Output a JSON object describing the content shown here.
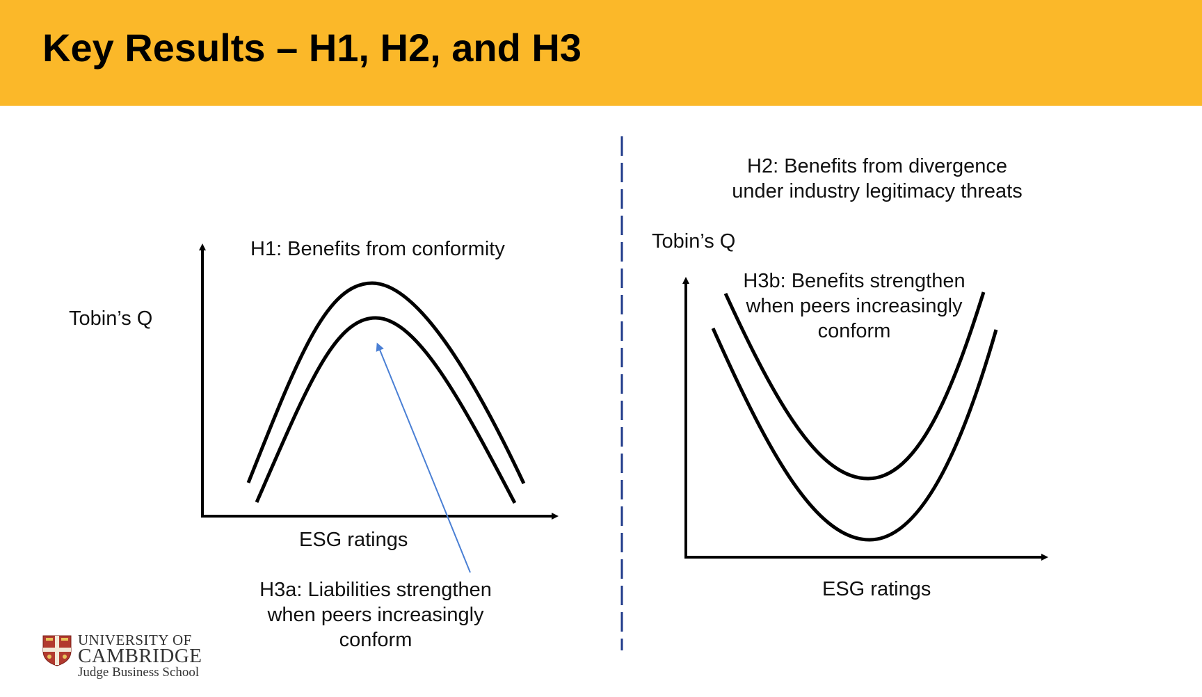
{
  "slide": {
    "title": "Key Results – H1, H2, and H3"
  },
  "left_panel": {
    "hypothesis_label": "H1: Benefits from conformity",
    "y_axis_label": "Tobin’s Q",
    "x_axis_label": "ESG ratings",
    "annotation_lines": [
      "H3a: Liabilities strengthen",
      "when peers increasingly",
      "conform"
    ],
    "curve_shape": "inverted-U",
    "curve_count": 2
  },
  "right_panel": {
    "hypothesis_lines": [
      "H2: Benefits from divergence",
      "under industry legitimacy threats"
    ],
    "y_axis_label": "Tobin’s Q",
    "x_axis_label": "ESG ratings",
    "annotation_lines": [
      "H3b: Benefits strengthen",
      "when peers increasingly",
      "conform"
    ],
    "curve_shape": "U",
    "curve_count": 2
  },
  "logo": {
    "line1": "UNIVERSITY OF",
    "line2": "CAMBRIDGE",
    "line3": "Judge Business School"
  },
  "colors": {
    "title_bar": "#FBB829",
    "divider": "#1F3A8A",
    "annotation_arrow": "#4A7FD4",
    "curves": "#000000"
  }
}
